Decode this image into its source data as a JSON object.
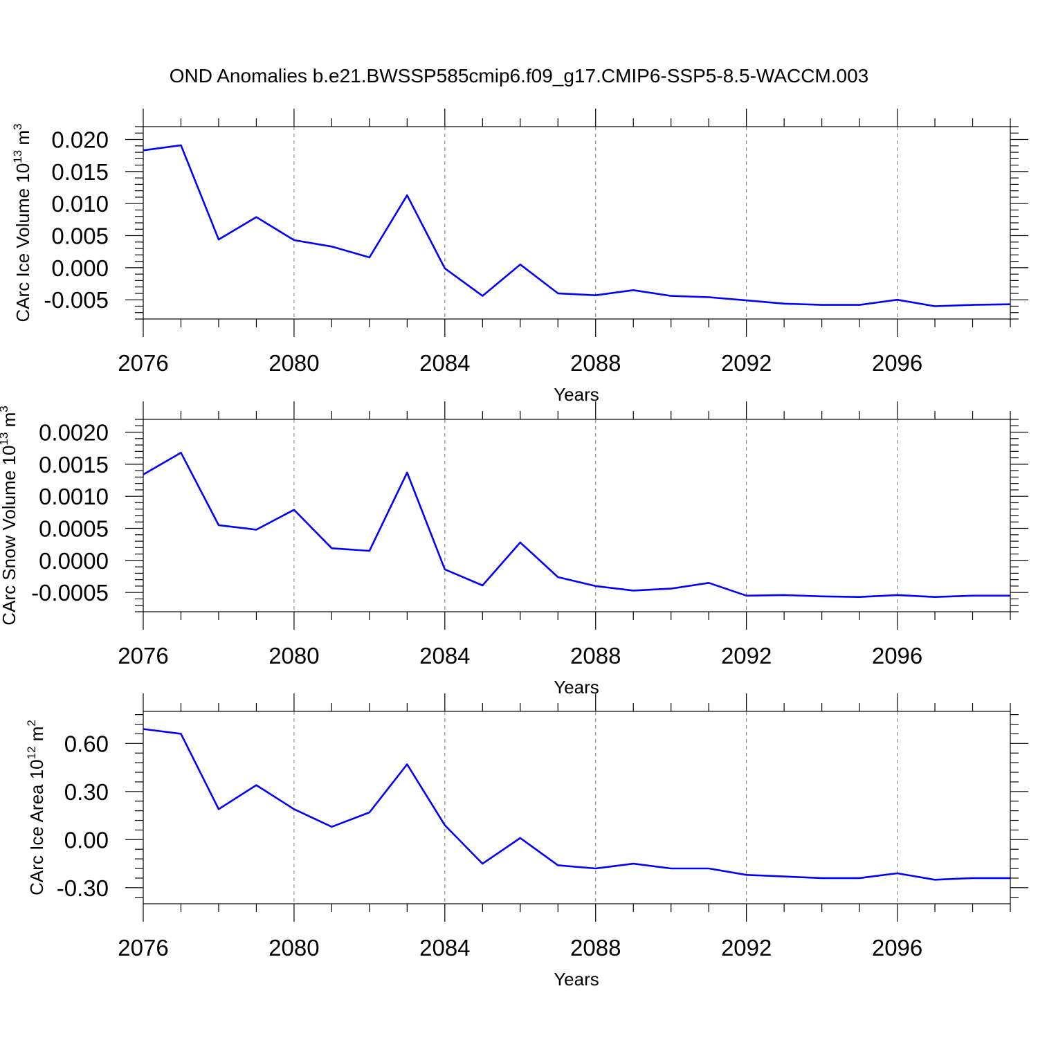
{
  "title": "OND Anomalies b.e21.BWSSP585cmip6.f09_g17.CMIP6-SSP5-8.5-WACCM.003",
  "chart_data": [
    {
      "type": "line",
      "xlabel": "Years",
      "ylabel": {
        "prefix": "CArc Ice Volume 10",
        "exponent": "13",
        "unit": " m",
        "unit_exponent": "3"
      },
      "xlim": [
        2076,
        2099
      ],
      "ylim": [
        -0.008,
        0.022
      ],
      "xticks": [
        2076,
        2080,
        2084,
        2088,
        2092,
        2096
      ],
      "yticks": [
        -0.005,
        0.0,
        0.005,
        0.01,
        0.015,
        0.02
      ],
      "ytick_labels": [
        "-0.005",
        "0.000",
        "0.005",
        "0.010",
        "0.015",
        "0.020"
      ],
      "x": [
        2076,
        2077,
        2078,
        2079,
        2080,
        2081,
        2082,
        2083,
        2084,
        2085,
        2086,
        2087,
        2088,
        2089,
        2090,
        2091,
        2092,
        2093,
        2094,
        2095,
        2096,
        2097,
        2098,
        2099
      ],
      "series": [
        {
          "color": "#0000ff",
          "values": [
            0.0183,
            0.0191,
            0.0044,
            0.0079,
            0.0043,
            0.0033,
            0.0016,
            0.0113,
            -0.0001,
            -0.0044,
            0.0005,
            -0.004,
            -0.0043,
            -0.0035,
            -0.0044,
            -0.0046,
            -0.0051,
            -0.0056,
            -0.0058,
            -0.0058,
            -0.005,
            -0.006,
            -0.0058,
            -0.0057
          ]
        }
      ],
      "grid": "dashed vertical lines at major x ticks"
    },
    {
      "type": "line",
      "xlabel": "Years",
      "ylabel": {
        "prefix": "CArc Snow Volume 10",
        "exponent": "13",
        "unit": " m",
        "unit_exponent": "3"
      },
      "xlim": [
        2076,
        2099
      ],
      "ylim": [
        -0.0008,
        0.0022
      ],
      "xticks": [
        2076,
        2080,
        2084,
        2088,
        2092,
        2096
      ],
      "yticks": [
        -0.0005,
        0.0,
        0.0005,
        0.001,
        0.0015,
        0.002
      ],
      "ytick_labels": [
        "-0.0005",
        "0.0000",
        "0.0005",
        "0.0010",
        "0.0015",
        "0.0020"
      ],
      "x": [
        2076,
        2077,
        2078,
        2079,
        2080,
        2081,
        2082,
        2083,
        2084,
        2085,
        2086,
        2087,
        2088,
        2089,
        2090,
        2091,
        2092,
        2093,
        2094,
        2095,
        2096,
        2097,
        2098,
        2099
      ],
      "series": [
        {
          "color": "#0000ff",
          "values": [
            0.00134,
            0.00168,
            0.00055,
            0.00048,
            0.00079,
            0.00019,
            0.00015,
            0.00137,
            -0.00014,
            -0.00039,
            0.00028,
            -0.00026,
            -0.0004,
            -0.00047,
            -0.00044,
            -0.00035,
            -0.00055,
            -0.00054,
            -0.00056,
            -0.00057,
            -0.00054,
            -0.00057,
            -0.00055,
            -0.00055
          ]
        }
      ],
      "grid": "dashed vertical lines at major x ticks"
    },
    {
      "type": "line",
      "xlabel": "Years",
      "ylabel": {
        "prefix": "CArc Ice Area 10",
        "exponent": "12",
        "unit": " m",
        "unit_exponent": "2"
      },
      "xlim": [
        2076,
        2099
      ],
      "ylim": [
        -0.4,
        0.8
      ],
      "xticks": [
        2076,
        2080,
        2084,
        2088,
        2092,
        2096
      ],
      "yticks": [
        -0.3,
        0.0,
        0.3,
        0.6
      ],
      "ytick_labels": [
        "-0.30",
        "0.00",
        "0.30",
        "0.60"
      ],
      "x": [
        2076,
        2077,
        2078,
        2079,
        2080,
        2081,
        2082,
        2083,
        2084,
        2085,
        2086,
        2087,
        2088,
        2089,
        2090,
        2091,
        2092,
        2093,
        2094,
        2095,
        2096,
        2097,
        2098,
        2099
      ],
      "series": [
        {
          "color": "#0000ff",
          "values": [
            0.69,
            0.66,
            0.19,
            0.34,
            0.19,
            0.08,
            0.17,
            0.47,
            0.09,
            -0.15,
            0.01,
            -0.16,
            -0.18,
            -0.15,
            -0.18,
            -0.18,
            -0.22,
            -0.23,
            -0.24,
            -0.24,
            -0.21,
            -0.25,
            -0.24,
            -0.24
          ]
        }
      ],
      "grid": "dashed vertical lines at major x ticks"
    }
  ]
}
